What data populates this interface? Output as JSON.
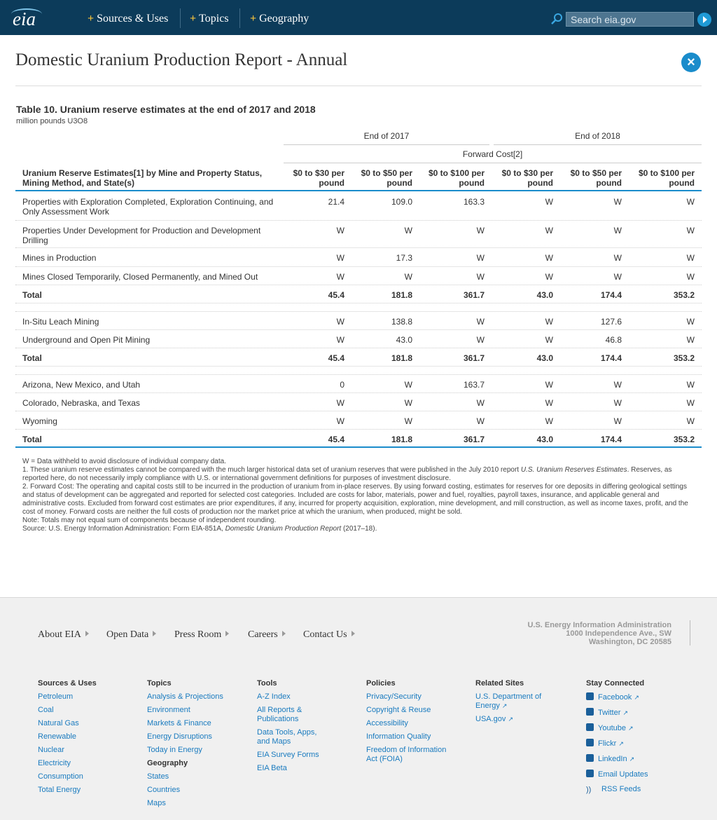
{
  "nav": {
    "logo": "eia",
    "items": [
      "Sources & Uses",
      "Topics",
      "Geography"
    ],
    "search_placeholder": "Search eia.gov"
  },
  "page": {
    "title": "Domestic Uranium Production Report - Annual",
    "close_label": "×"
  },
  "table": {
    "title": "Table 10. Uranium reserve estimates at the end of 2017 and 2018",
    "units": "million pounds U3O8",
    "year_2017": "End of 2017",
    "year_2018": "End of 2018",
    "forward_cost": "Forward Cost[2]",
    "row_header": "Uranium Reserve Estimates[1] by Mine and Property Status, Mining Method, and State(s)",
    "columns": [
      "$0 to $30 per pound",
      "$0 to $50 per pound",
      "$0 to $100 per pound",
      "$0 to $30 per pound",
      "$0 to $50 per pound",
      "$0 to $100 per pound"
    ],
    "rows": [
      {
        "label": "Properties with Exploration Completed, Exploration Continuing, and Only Assessment Work",
        "values": [
          "21.4",
          "109.0",
          "163.3",
          "W",
          "W",
          "W"
        ]
      },
      {
        "label": "Properties Under Development for Production and Development Drilling",
        "values": [
          "W",
          "W",
          "W",
          "W",
          "W",
          "W"
        ]
      },
      {
        "label": "Mines in Production",
        "values": [
          "W",
          "17.3",
          "W",
          "W",
          "W",
          "W"
        ]
      },
      {
        "label": "Mines Closed Temporarily, Closed Permanently, and Mined Out",
        "values": [
          "W",
          "W",
          "W",
          "W",
          "W",
          "W"
        ]
      },
      {
        "label": "Total",
        "values": [
          "45.4",
          "181.8",
          "361.7",
          "43.0",
          "174.4",
          "353.2"
        ]
      },
      {
        "label": "In-Situ Leach Mining",
        "values": [
          "W",
          "138.8",
          "W",
          "W",
          "127.6",
          "W"
        ]
      },
      {
        "label": "Underground and Open Pit Mining",
        "values": [
          "W",
          "43.0",
          "W",
          "W",
          "46.8",
          "W"
        ]
      },
      {
        "label": "Total",
        "values": [
          "45.4",
          "181.8",
          "361.7",
          "43.0",
          "174.4",
          "353.2"
        ]
      },
      {
        "label": "Arizona, New Mexico, and Utah",
        "values": [
          "0",
          "W",
          "163.7",
          "W",
          "W",
          "W"
        ]
      },
      {
        "label": "Colorado, Nebraska, and Texas",
        "values": [
          "W",
          "W",
          "W",
          "W",
          "W",
          "W"
        ]
      },
      {
        "label": "Wyoming",
        "values": [
          "W",
          "W",
          "W",
          "W",
          "W",
          "W"
        ]
      },
      {
        "label": "Total",
        "values": [
          "45.4",
          "181.8",
          "361.7",
          "43.0",
          "174.4",
          "353.2"
        ]
      }
    ]
  },
  "notes": {
    "w": "W = Data withheld to avoid disclosure of individual company data.",
    "n1_a": "1. These uranium reserve estimates cannot be compared with the much larger historical data set of uranium reserves that were published in the July 2010 report ",
    "n1_italic": "U.S. Uranium Reserves Estimates",
    "n1_b": ". Reserves, as reported here, do not necessarily imply compliance with U.S. or international government definitions for purposes of investment disclosure.",
    "n2": "2. Forward Cost: The operating and capital costs still to be incurred in the production of uranium from in-place reserves. By using forward costing, estimates for reserves for ore deposits in differing geological settings and status of development can be aggregated and reported for selected cost categories. Included are costs for labor, materials, power and fuel, royalties, payroll taxes, insurance, and applicable general and administrative costs. Excluded from forward cost estimates are prior expenditures, if any, incurred for property acquisition, exploration, mine development, and mill construction, as well as income taxes, profit, and the cost of money. Forward costs are neither the full costs of production nor the market price at which the uranium, when produced, might be sold.",
    "note": "Note: Totals may not equal sum of components because of independent rounding.",
    "source_a": "Source: U.S. Energy Information Administration: Form EIA-851A, ",
    "source_italic": "Domestic Uranium Production Report",
    "source_b": " (2017–18)."
  },
  "footer": {
    "links": [
      "About EIA",
      "Open Data",
      "Press Room",
      "Careers",
      "Contact Us"
    ],
    "address": [
      "U.S. Energy Information Administration",
      "1000 Independence Ave., SW",
      "Washington, DC 20585"
    ],
    "sources_uses": {
      "heading": "Sources & Uses",
      "items": [
        "Petroleum",
        "Coal",
        "Natural Gas",
        "Renewable",
        "Nuclear",
        "Electricity",
        "Consumption",
        "Total Energy"
      ]
    },
    "topics": {
      "heading": "Topics",
      "items": [
        "Analysis & Projections",
        "Environment",
        "Markets & Finance",
        "Energy Disruptions",
        "Today in Energy"
      ],
      "geo_heading": "Geography",
      "geo_items": [
        "States",
        "Countries",
        "Maps"
      ]
    },
    "tools": {
      "heading": "Tools",
      "items": [
        "A-Z Index",
        "All Reports & Publications",
        "Data Tools, Apps, and Maps",
        "EIA Survey Forms",
        "EIA Beta"
      ]
    },
    "policies": {
      "heading": "Policies",
      "items": [
        "Privacy/Security",
        "Copyright & Reuse",
        "Accessibility",
        "Information Quality",
        "Freedom of Information Act (FOIA)"
      ]
    },
    "related": {
      "heading": "Related Sites",
      "items": [
        "U.S. Department of Energy",
        "USA.gov"
      ]
    },
    "social": {
      "heading": "Stay Connected",
      "items": [
        "Facebook",
        "Twitter",
        "Youtube",
        "Flickr",
        "LinkedIn",
        "Email Updates",
        "RSS Feeds"
      ]
    }
  }
}
